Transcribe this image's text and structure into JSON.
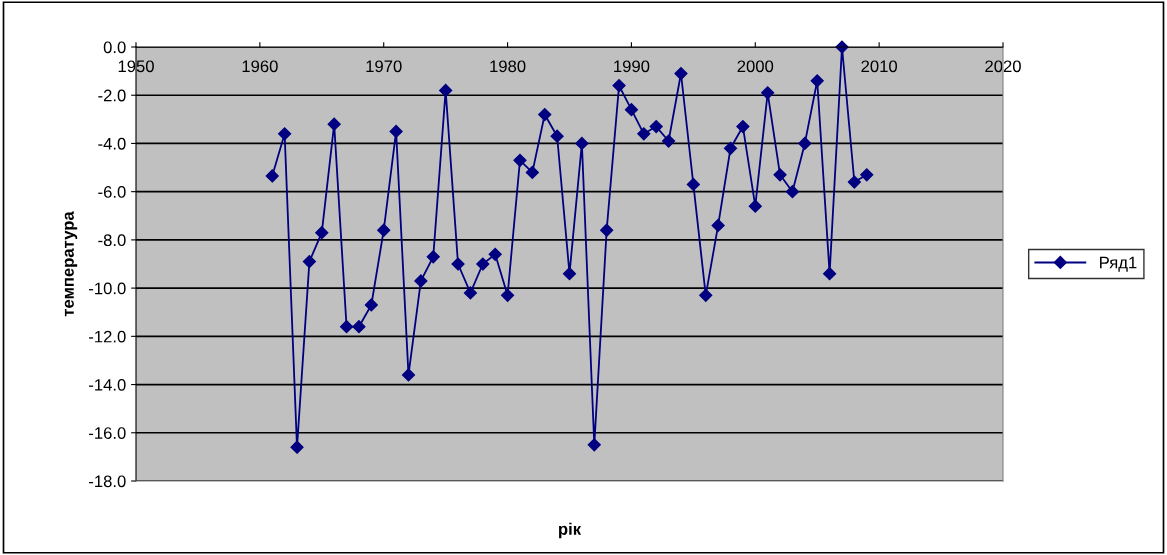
{
  "chart_data": {
    "type": "line",
    "xlabel": "рік",
    "ylabel": "температура",
    "x": [
      1961,
      1962,
      1963,
      1964,
      1965,
      1966,
      1967,
      1968,
      1969,
      1970,
      1971,
      1972,
      1973,
      1974,
      1975,
      1976,
      1977,
      1978,
      1979,
      1980,
      1981,
      1982,
      1983,
      1984,
      1985,
      1986,
      1987,
      1988,
      1989,
      1990,
      1991,
      1992,
      1993,
      1994,
      1995,
      1996,
      1997,
      1998,
      1999,
      2000,
      2001,
      2002,
      2003,
      2004,
      2005,
      2006,
      2007,
      2008,
      2009
    ],
    "series": [
      {
        "name": "Ряд1",
        "color": "#000080",
        "values": [
          -5.35,
          -3.6,
          -16.6,
          -8.9,
          -7.7,
          -3.2,
          -11.6,
          -11.6,
          -10.7,
          -7.6,
          -3.5,
          -13.6,
          -9.7,
          -8.7,
          -1.8,
          -9.0,
          -10.2,
          -9.0,
          -8.6,
          -10.3,
          -4.7,
          -5.2,
          -2.8,
          -3.7,
          -9.4,
          -4.0,
          -16.5,
          -7.6,
          -1.6,
          -2.6,
          -3.6,
          -3.3,
          -3.9,
          -1.1,
          -5.7,
          -10.3,
          -7.4,
          -4.2,
          -3.3,
          -6.6,
          -1.9,
          -5.3,
          -6.0,
          -4.0,
          -1.4,
          -9.4,
          0.0,
          -5.6,
          -5.3
        ]
      }
    ],
    "xlim": [
      1950,
      2020
    ],
    "xticks": [
      1950,
      1960,
      1970,
      1980,
      1990,
      2000,
      2010,
      2020
    ],
    "ylim": [
      -18,
      0
    ],
    "yticks": [
      {
        "value": 0,
        "label": "0.0"
      },
      {
        "value": -2,
        "label": "-2.0"
      },
      {
        "value": -4,
        "label": "-4.0"
      },
      {
        "value": -6,
        "label": "-6.0"
      },
      {
        "value": -8,
        "label": "-8.0"
      },
      {
        "value": -10,
        "label": "-10.0"
      },
      {
        "value": -12,
        "label": "-12.0"
      },
      {
        "value": -14,
        "label": "-14.0"
      },
      {
        "value": -16,
        "label": "-16.0"
      },
      {
        "value": -18,
        "label": "-18.0"
      }
    ],
    "grid": "y",
    "legend": "right",
    "marker": "diamond",
    "line_style": "solid"
  }
}
